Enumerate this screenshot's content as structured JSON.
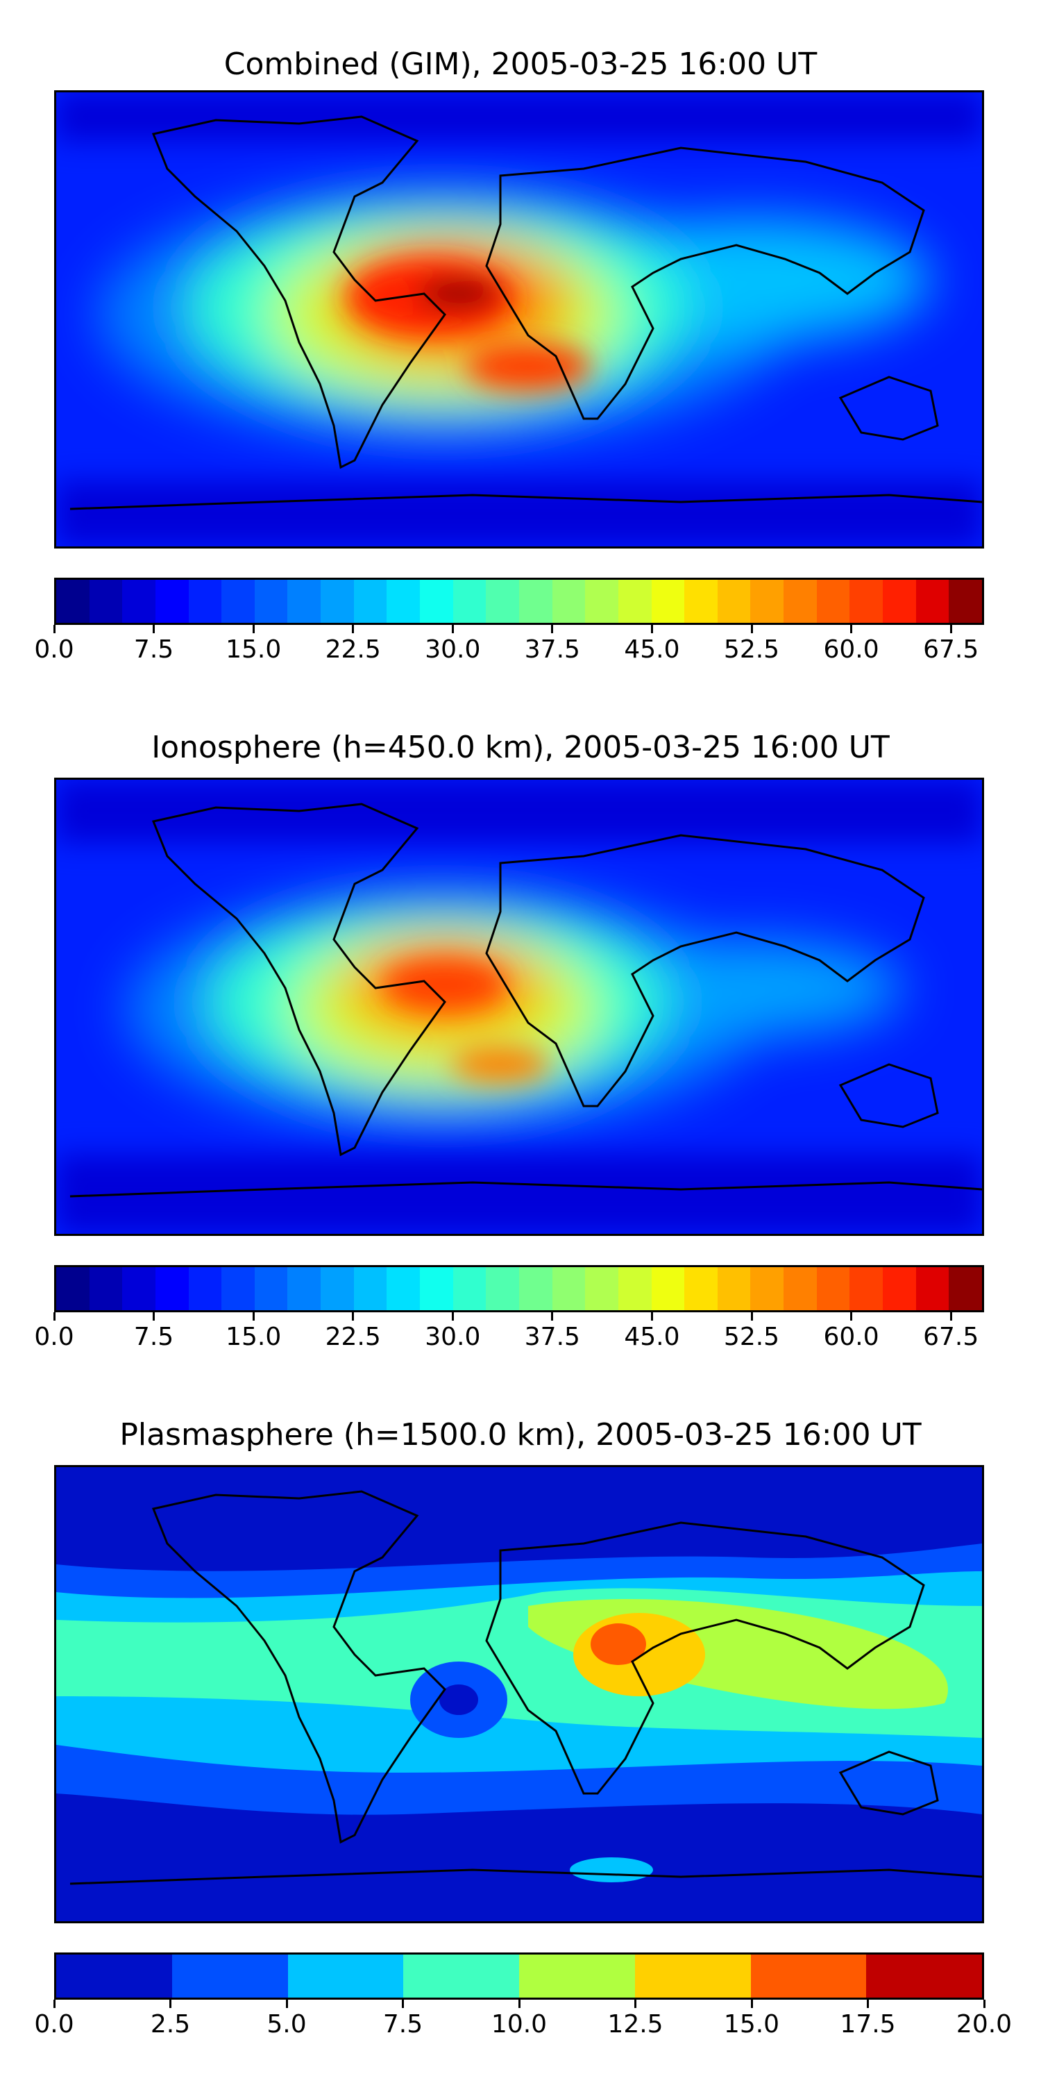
{
  "panels": [
    {
      "title": "Combined (GIM), 2005-03-25 16:00 UT",
      "colorbar": {
        "min": 0.0,
        "max": 70.0,
        "levels": 28,
        "tick_labels": [
          "0.0",
          "7.5",
          "15.0",
          "22.5",
          "30.0",
          "37.5",
          "45.0",
          "52.5",
          "60.0",
          "67.5"
        ],
        "tick_values": [
          0.0,
          7.5,
          15.0,
          22.5,
          30.0,
          37.5,
          45.0,
          52.5,
          60.0,
          67.5
        ]
      }
    },
    {
      "title": "Ionosphere  (h=450.0 km), 2005-03-25 16:00 UT",
      "colorbar": {
        "min": 0.0,
        "max": 70.0,
        "levels": 28,
        "tick_labels": [
          "0.0",
          "7.5",
          "15.0",
          "22.5",
          "30.0",
          "37.5",
          "45.0",
          "52.5",
          "60.0",
          "67.5"
        ],
        "tick_values": [
          0.0,
          7.5,
          15.0,
          22.5,
          30.0,
          37.5,
          45.0,
          52.5,
          60.0,
          67.5
        ]
      }
    },
    {
      "title": "Plasmasphere (h=1500.0 km), 2005-03-25 16:00 UT",
      "colorbar": {
        "min": 0.0,
        "max": 20.0,
        "levels": 8,
        "tick_labels": [
          "0.0",
          "2.5",
          "5.0",
          "7.5",
          "10.0",
          "12.5",
          "15.0",
          "17.5",
          "20.0"
        ],
        "tick_values": [
          0.0,
          2.5,
          5.0,
          7.5,
          10.0,
          12.5,
          15.0,
          17.5,
          20.0
        ]
      }
    }
  ],
  "colors": {
    "jet_28": [
      "#00008f",
      "#0000b3",
      "#0000d9",
      "#0000ff",
      "#0020ff",
      "#0040ff",
      "#0060ff",
      "#0080ff",
      "#00a0ff",
      "#00c0ff",
      "#00e0ff",
      "#10ffef",
      "#30ffcf",
      "#50ffaf",
      "#70ff8f",
      "#90ff70",
      "#b0ff50",
      "#d0ff30",
      "#efff10",
      "#ffe000",
      "#ffc000",
      "#ffa000",
      "#ff8000",
      "#ff6000",
      "#ff4000",
      "#ff2000",
      "#df0000",
      "#8f0000"
    ],
    "jet_8": [
      "#0010c8",
      "#0050ff",
      "#00c4ff",
      "#40ffc0",
      "#b0ff40",
      "#ffd000",
      "#ff5a00",
      "#c00000"
    ]
  }
}
